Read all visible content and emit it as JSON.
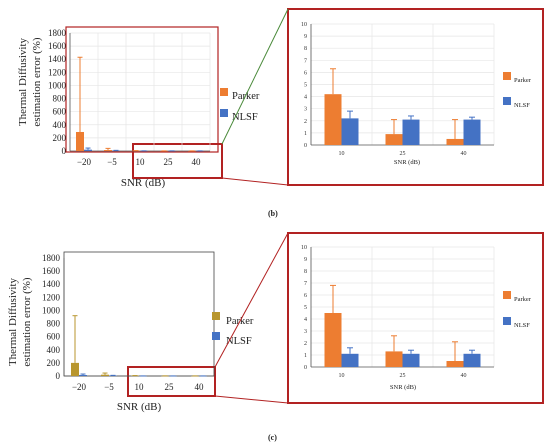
{
  "colors": {
    "parker": "#ed7d31",
    "parker_alt": "#b8962e",
    "nlsf": "#4472c4",
    "zoom_box": "#b22222",
    "grid": "#e6e6e6"
  },
  "panels": [
    {
      "label": "(b)",
      "ylabel_lines": [
        "Thermal Diffusivity",
        "estimation error  (%)"
      ],
      "xlabel": "SNR (dB)",
      "zoom_xlabel": "SNR (dB)"
    },
    {
      "label": "(c)",
      "ylabel_lines": [
        "Thermal Diffusivity",
        "estimation error (%)"
      ],
      "xlabel": "SNR (dB)",
      "zoom_xlabel": "SNR (dB)"
    }
  ],
  "chart_data": [
    {
      "id": "b-main",
      "type": "bar",
      "categories": [
        "−20",
        "−5",
        "10",
        "25",
        "40"
      ],
      "xlabel": "SNR (dB)",
      "ylabel": "Thermal Diffusivity estimation error  (%)",
      "ylim": [
        0,
        1800
      ],
      "yticks": [
        0,
        200,
        400,
        600,
        800,
        1000,
        1200,
        1400,
        1600,
        1800
      ],
      "grid": true,
      "legend": "right",
      "series": [
        {
          "name": "Parker",
          "values": [
            290,
            15,
            4.2,
            0.9,
            0.5
          ],
          "err": [
            1140,
            25,
            2.1,
            1.2,
            1.6
          ]
        },
        {
          "name": "NLSF",
          "values": [
            20,
            5,
            2.2,
            2.1,
            2.1
          ],
          "err": [
            25,
            5,
            0.6,
            0.3,
            0.2
          ]
        }
      ]
    },
    {
      "id": "b-zoom",
      "type": "bar",
      "categories": [
        "10",
        "25",
        "40"
      ],
      "xlabel": "SNR (dB)",
      "ylim": [
        0,
        10
      ],
      "yticks": [
        0,
        1,
        2,
        3,
        4,
        5,
        6,
        7,
        8,
        9,
        10
      ],
      "grid": true,
      "legend": "right",
      "series": [
        {
          "name": "Parker",
          "values": [
            4.2,
            0.9,
            0.5
          ],
          "err": [
            2.1,
            1.2,
            1.6
          ]
        },
        {
          "name": "NLSF",
          "values": [
            2.2,
            2.1,
            2.1
          ],
          "err": [
            0.6,
            0.3,
            0.2
          ]
        }
      ]
    },
    {
      "id": "c-main",
      "type": "bar",
      "categories": [
        "−20",
        "−5",
        "10",
        "25",
        "40"
      ],
      "xlabel": "SNR (dB)",
      "ylabel": "Thermal Diffusivity estimation error (%)",
      "ylim": [
        0,
        1800
      ],
      "yticks": [
        0,
        200,
        400,
        600,
        800,
        1000,
        1200,
        1400,
        1600,
        1800
      ],
      "grid": false,
      "legend": "right",
      "series": [
        {
          "name": "Parker",
          "values": [
            200,
            20,
            4.5,
            1.3,
            0.5
          ],
          "err": [
            720,
            25,
            2.3,
            1.3,
            1.6
          ]
        },
        {
          "name": "NLSF",
          "values": [
            15,
            5,
            1.1,
            1.1,
            1.1
          ],
          "err": [
            15,
            5,
            0.5,
            0.3,
            0.3
          ]
        }
      ]
    },
    {
      "id": "c-zoom",
      "type": "bar",
      "categories": [
        "10",
        "25",
        "40"
      ],
      "xlabel": "SNR (dB)",
      "ylim": [
        0,
        10
      ],
      "yticks": [
        0,
        1,
        2,
        3,
        4,
        5,
        6,
        7,
        8,
        9,
        10
      ],
      "grid": true,
      "legend": "right",
      "series": [
        {
          "name": "Parker",
          "values": [
            4.5,
            1.3,
            0.5
          ],
          "err": [
            2.3,
            1.3,
            1.6
          ]
        },
        {
          "name": "NLSF",
          "values": [
            1.1,
            1.1,
            1.1
          ],
          "err": [
            0.5,
            0.3,
            0.3
          ]
        }
      ]
    }
  ]
}
